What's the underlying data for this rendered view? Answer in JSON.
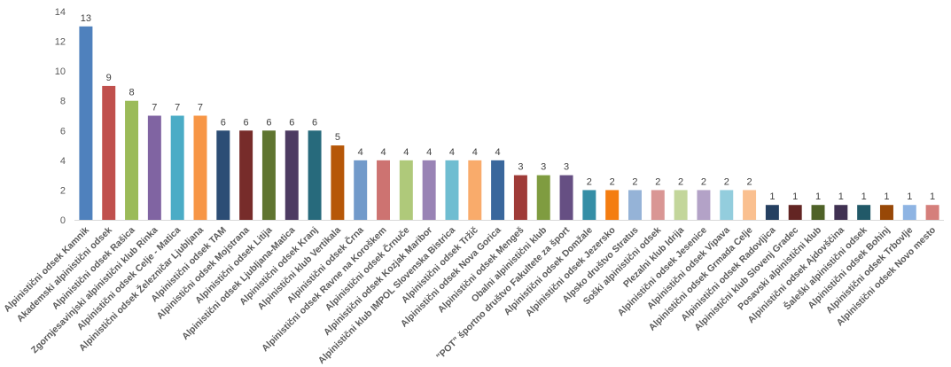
{
  "chart_data": {
    "type": "bar",
    "title": "",
    "xlabel": "",
    "ylabel": "",
    "ylim": [
      0,
      14
    ],
    "yticks": [
      0,
      2,
      4,
      6,
      8,
      10,
      12,
      14
    ],
    "grid": false,
    "legend": "none",
    "categories": [
      "Alpinistični odsek Kamnik",
      "Akademski alpinistični odsek",
      "Alpinistični odsek Rašica",
      "Zgornjesavinjski alpinistični klub Rinka",
      "Alpinistični odsek Celje - Matica",
      "Alpinistični odsek Železničar Ljubljana",
      "Alpinistični odsek TAM",
      "Alpinistični odsek Mojstrana",
      "Alpinistični odsek Litija",
      "Alpinistični odsek Ljubljana-Matica",
      "Alpinistični odsek Kranj",
      "Alpinistični klub Vertikala",
      "Alpinistični odsek Črna",
      "Alpinistični odsek Ravne na Koroškem",
      "Alpinistični odsek Črnuče",
      "Alpinistični odsek Kozjak Maribor",
      "Alpinistični klub IMPOL Slovenska Bistrica",
      "Alpinistični odsek Tržič",
      "Alpinistični odsek Nova Gorica",
      "Alpinistični odsek Mengeš",
      "Obalni alpinistični klub",
      "\"POT\" športno društvo Fakultete za šport",
      "Alpinistični odsek Domžale",
      "Alpinistični odsek Jezersko",
      "Alpsko društvo Stratus",
      "Soški alpinistični odsek",
      "Plezalni klub Idrija",
      "Alpinistični odsek Jesenice",
      "Alpinistični odsek Vipava",
      "Alpinistični odsek Grmada Celje",
      "Alpinistični odsek Radovljica",
      "Alpinistični klub Slovenj Gradec",
      "Posavski alpinistični klub",
      "Alpinistični odsek Ajdovščina",
      "Šaleški alpinistični odsek",
      "Alpinistični odsek Bohinj",
      "Alpinistični odsek Trbovlje",
      "Alpinistični odsek Novo mesto"
    ],
    "values": [
      13,
      9,
      8,
      7,
      7,
      7,
      6,
      6,
      6,
      6,
      6,
      5,
      4,
      4,
      4,
      4,
      4,
      4,
      4,
      3,
      3,
      3,
      2,
      2,
      2,
      2,
      2,
      2,
      2,
      2,
      1,
      1,
      1,
      1,
      1,
      1,
      1,
      1
    ],
    "colors": [
      "#4f81bd",
      "#c0504d",
      "#9bbb59",
      "#8064a2",
      "#4bacc6",
      "#f79646",
      "#2c4d75",
      "#772c2a",
      "#5f7530",
      "#4d3b62",
      "#276a7c",
      "#b65708",
      "#729aca",
      "#cd7371",
      "#afc97a",
      "#9983b5",
      "#6fbdd1",
      "#f9ab6b",
      "#3a679c",
      "#9f3b38",
      "#7f9c40",
      "#664f83",
      "#358ea6",
      "#f47d11",
      "#95b3d7",
      "#d99694",
      "#c3d69b",
      "#b3a2c7",
      "#93cddd",
      "#fac090",
      "#254061",
      "#632523",
      "#4f6228",
      "#403152",
      "#215968",
      "#984807",
      "#8eb4e3",
      "#d57f7b"
    ]
  }
}
